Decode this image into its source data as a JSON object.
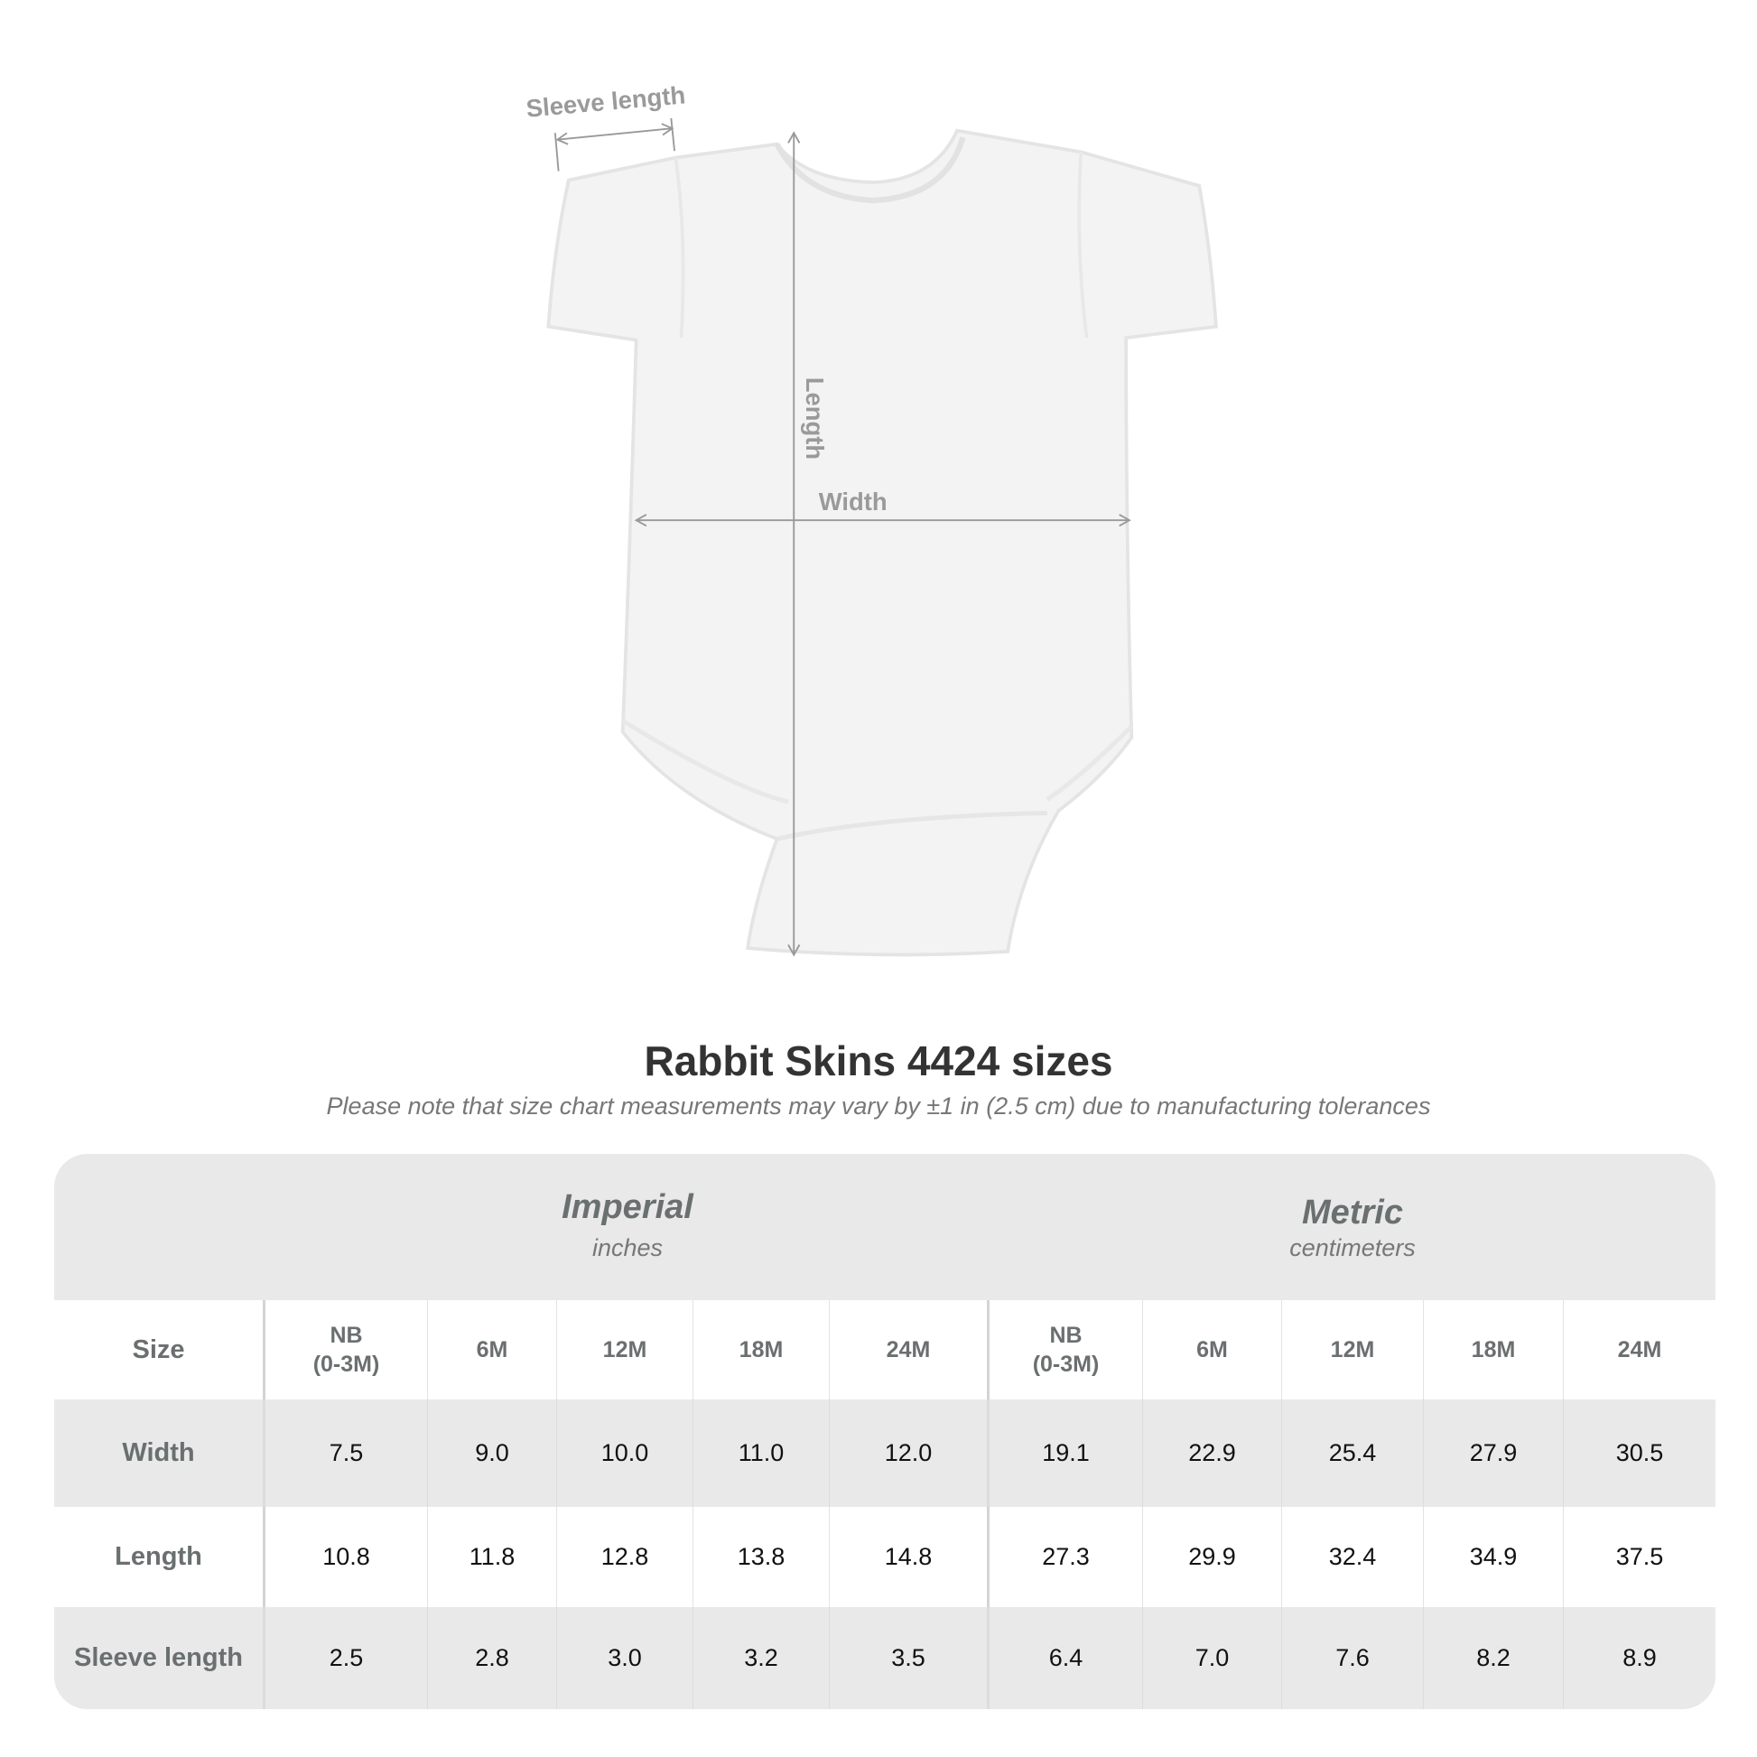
{
  "diagram": {
    "sleeve_label": "Sleeve length",
    "length_label": "Length",
    "width_label": "Width"
  },
  "title": "Rabbit Skins 4424 sizes",
  "note": "Please note that size chart measurements may vary by ±1 in (2.5 cm) due to manufacturing tolerances",
  "table": {
    "imperial": {
      "label": "Imperial",
      "unit": "inches"
    },
    "metric": {
      "label": "Metric",
      "unit": "centimeters"
    },
    "size_label": "Size",
    "sizes": [
      "NB\n(0-3M)",
      "6M",
      "12M",
      "18M",
      "24M",
      "NB\n(0-3M)",
      "6M",
      "12M",
      "18M",
      "24M"
    ],
    "rows": [
      {
        "label": "Width",
        "values": [
          "7.5",
          "9.0",
          "10.0",
          "11.0",
          "12.0",
          "19.1",
          "22.9",
          "25.4",
          "27.9",
          "30.5"
        ]
      },
      {
        "label": "Length",
        "values": [
          "10.8",
          "11.8",
          "12.8",
          "13.8",
          "14.8",
          "27.3",
          "29.9",
          "32.4",
          "34.9",
          "37.5"
        ]
      },
      {
        "label": "Sleeve length",
        "values": [
          "2.5",
          "2.8",
          "3.0",
          "3.2",
          "3.5",
          "6.4",
          "7.0",
          "7.6",
          "8.2",
          "8.9"
        ]
      }
    ]
  },
  "colors": {
    "header_bg": "#e9e9e9",
    "label_text": "#6a6f70",
    "title_text": "#333333"
  }
}
